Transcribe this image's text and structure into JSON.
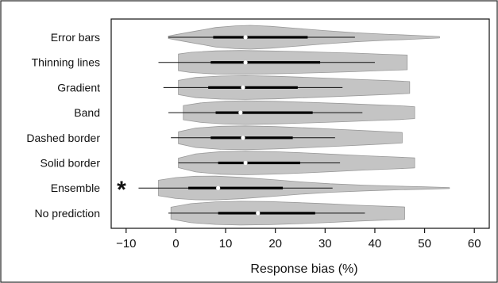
{
  "chart_data": {
    "type": "violin",
    "xlabel": "Response bias (%)",
    "xlim": [
      -13,
      63
    ],
    "xticks": [
      -10,
      0,
      10,
      20,
      30,
      40,
      50,
      60
    ],
    "grid": false,
    "annotation": "*",
    "annotation_category": "Ensemble",
    "colors": {
      "violin": "#c4c4c4",
      "violin_stroke": "#9a9a9a",
      "whisker": "#111111",
      "box": "#000000",
      "median": "#ffffff"
    },
    "categories": [
      "Error bars",
      "Thinning lines",
      "Gradient",
      "Band",
      "Dashed border",
      "Solid border",
      "Ensemble",
      "No prediction"
    ],
    "series": [
      {
        "category": "Error bars",
        "min": -1.5,
        "q1": 7.5,
        "median": 14.0,
        "q3": 26.5,
        "max": 36.0,
        "violin_min": -1.5,
        "violin_max": 53.0,
        "density": [
          [
            -1.5,
            0.1
          ],
          [
            0,
            0.22
          ],
          [
            4,
            0.52
          ],
          [
            8,
            0.82
          ],
          [
            12,
            0.96
          ],
          [
            15,
            1.0
          ],
          [
            19,
            0.92
          ],
          [
            24,
            0.76
          ],
          [
            30,
            0.56
          ],
          [
            36,
            0.38
          ],
          [
            42,
            0.26
          ],
          [
            48,
            0.16
          ],
          [
            53,
            0.06
          ]
        ]
      },
      {
        "category": "Thinning lines",
        "min": -3.5,
        "q1": 7.0,
        "median": 14.0,
        "q3": 29.0,
        "max": 40.0,
        "violin_min": 0.5,
        "violin_max": 46.5,
        "density": [
          [
            0.5,
            0.7
          ],
          [
            3,
            0.85
          ],
          [
            8,
            0.97
          ],
          [
            13,
            1.0
          ],
          [
            18,
            0.97
          ],
          [
            24,
            0.92
          ],
          [
            30,
            0.85
          ],
          [
            36,
            0.78
          ],
          [
            42,
            0.68
          ],
          [
            46.5,
            0.62
          ]
        ]
      },
      {
        "category": "Gradient",
        "min": -2.5,
        "q1": 6.5,
        "median": 13.5,
        "q3": 24.5,
        "max": 33.5,
        "violin_min": 0.5,
        "violin_max": 47.0,
        "density": [
          [
            0.5,
            0.6
          ],
          [
            4,
            0.85
          ],
          [
            9,
            0.97
          ],
          [
            14,
            1.0
          ],
          [
            20,
            0.95
          ],
          [
            26,
            0.86
          ],
          [
            32,
            0.76
          ],
          [
            38,
            0.66
          ],
          [
            43,
            0.58
          ],
          [
            47,
            0.5
          ]
        ]
      },
      {
        "category": "Band",
        "min": -1.5,
        "q1": 8.0,
        "median": 13.0,
        "q3": 27.5,
        "max": 37.5,
        "violin_min": 1.5,
        "violin_max": 48.0,
        "density": [
          [
            1.5,
            0.6
          ],
          [
            5,
            0.82
          ],
          [
            10,
            0.96
          ],
          [
            14,
            1.0
          ],
          [
            20,
            0.95
          ],
          [
            27,
            0.86
          ],
          [
            34,
            0.76
          ],
          [
            40,
            0.66
          ],
          [
            45,
            0.58
          ],
          [
            48,
            0.5
          ]
        ]
      },
      {
        "category": "Dashed border",
        "min": -1.0,
        "q1": 7.0,
        "median": 13.5,
        "q3": 23.5,
        "max": 32.0,
        "violin_min": 0.5,
        "violin_max": 45.5,
        "density": [
          [
            0.5,
            0.5
          ],
          [
            4,
            0.82
          ],
          [
            9,
            0.97
          ],
          [
            14,
            1.0
          ],
          [
            20,
            0.94
          ],
          [
            26,
            0.84
          ],
          [
            32,
            0.72
          ],
          [
            38,
            0.6
          ],
          [
            42,
            0.52
          ],
          [
            45.5,
            0.44
          ]
        ]
      },
      {
        "category": "Solid border",
        "min": 0.5,
        "q1": 8.5,
        "median": 14.0,
        "q3": 25.0,
        "max": 33.0,
        "violin_min": 0.5,
        "violin_max": 48.0,
        "density": [
          [
            0.5,
            0.4
          ],
          [
            4,
            0.76
          ],
          [
            9,
            0.95
          ],
          [
            14,
            1.0
          ],
          [
            20,
            0.94
          ],
          [
            26,
            0.84
          ],
          [
            32,
            0.72
          ],
          [
            38,
            0.6
          ],
          [
            44,
            0.5
          ],
          [
            48,
            0.42
          ]
        ]
      },
      {
        "category": "Ensemble",
        "min": -7.5,
        "q1": 2.5,
        "median": 8.5,
        "q3": 21.5,
        "max": 31.5,
        "violin_min": -3.5,
        "violin_max": 55.0,
        "density": [
          [
            -3.5,
            0.65
          ],
          [
            0,
            0.88
          ],
          [
            4,
            0.99
          ],
          [
            8,
            1.0
          ],
          [
            13,
            0.9
          ],
          [
            19,
            0.72
          ],
          [
            25,
            0.52
          ],
          [
            31,
            0.36
          ],
          [
            38,
            0.24
          ],
          [
            45,
            0.15
          ],
          [
            50,
            0.1
          ],
          [
            55,
            0.04
          ]
        ]
      },
      {
        "category": "No prediction",
        "min": -1.5,
        "q1": 8.5,
        "median": 16.5,
        "q3": 28.0,
        "max": 38.0,
        "violin_min": -1.0,
        "violin_max": 46.0,
        "density": [
          [
            -1,
            0.5
          ],
          [
            3,
            0.8
          ],
          [
            8,
            0.95
          ],
          [
            13,
            1.0
          ],
          [
            19,
            0.97
          ],
          [
            25,
            0.88
          ],
          [
            31,
            0.78
          ],
          [
            37,
            0.66
          ],
          [
            42,
            0.58
          ],
          [
            46,
            0.52
          ]
        ]
      }
    ]
  }
}
